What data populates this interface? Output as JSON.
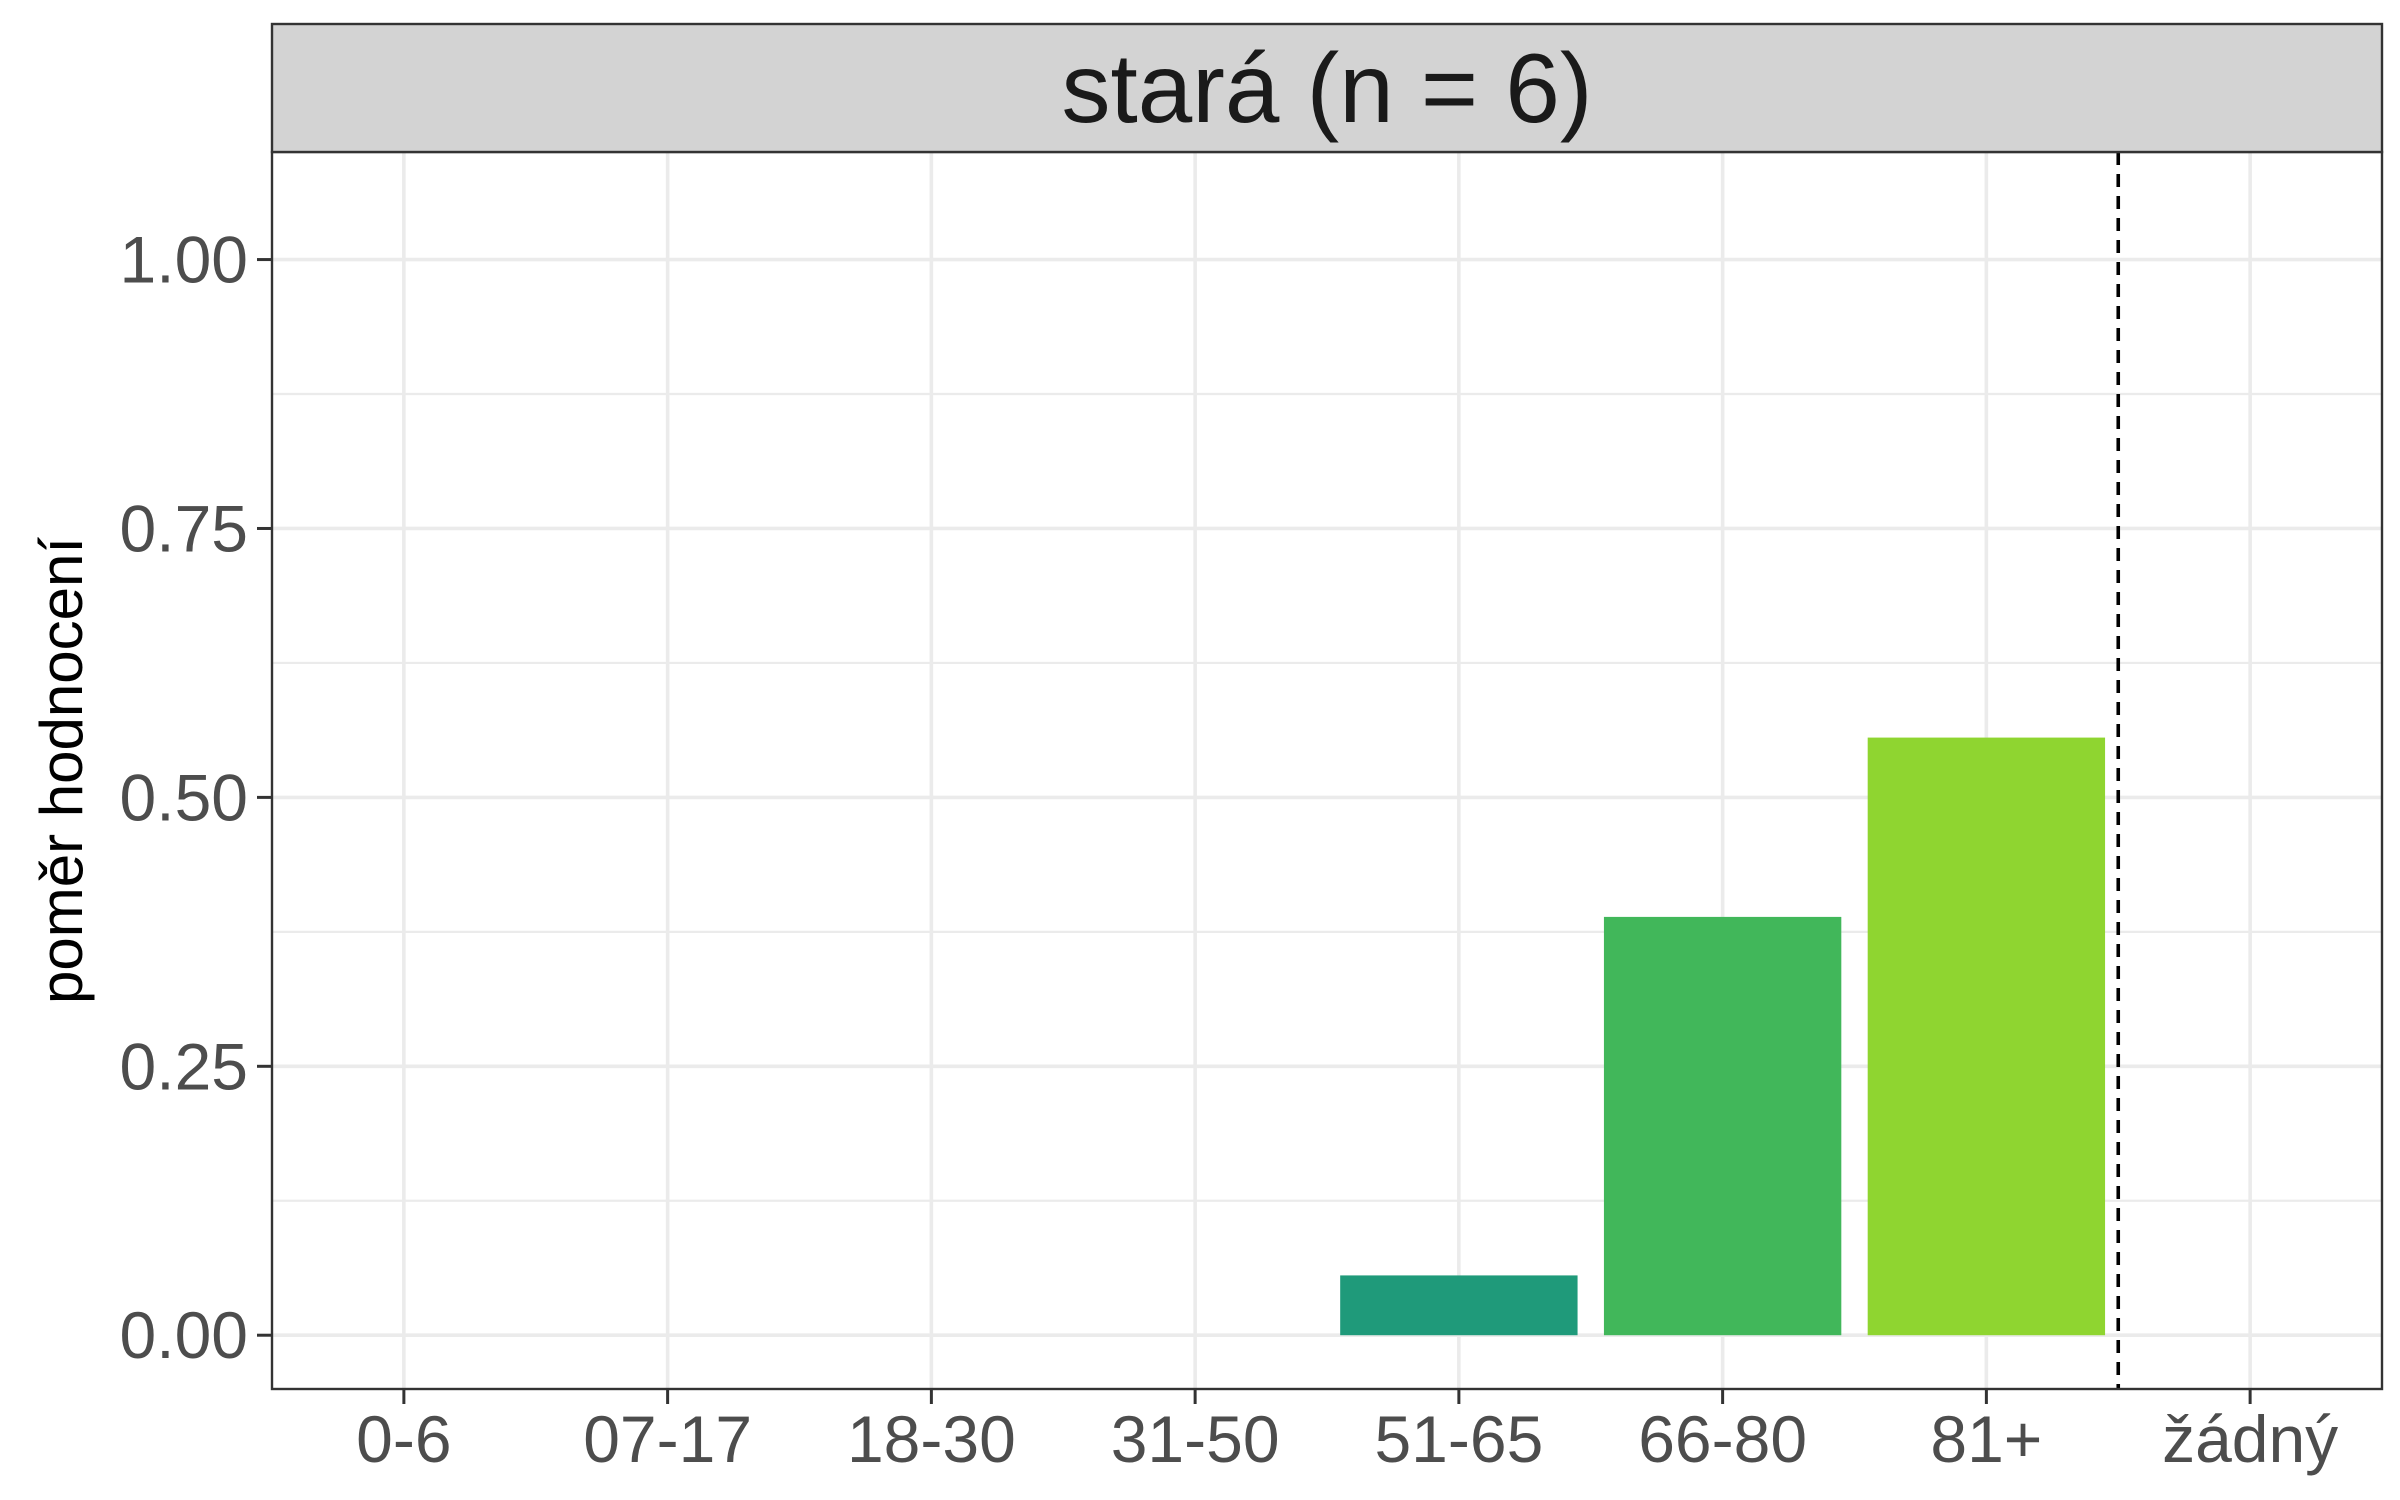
{
  "chart_data": {
    "type": "bar",
    "facet_title": "stará (n = 6)",
    "ylabel": "poměr hodnocení",
    "xlabel": "",
    "categories": [
      "0-6",
      "07-17",
      "18-30",
      "31-50",
      "51-65",
      "66-80",
      "81+",
      "žádný"
    ],
    "values": [
      0,
      0,
      0,
      0,
      0.0556,
      0.3889,
      0.5556,
      0
    ],
    "ylim": [
      -0.05,
      1.1
    ],
    "yticks": [
      0,
      0.25,
      0.5,
      0.75,
      1.0
    ],
    "ytick_labels": [
      "0.00",
      "0.25",
      "0.50",
      "0.75",
      "1.00"
    ],
    "colors": [
      "#440154",
      "#482878",
      "#3e4989",
      "#31688e",
      "#1f9a7a",
      "#41b75a",
      "#8fd530",
      "#fde725"
    ],
    "reference_line": {
      "between": [
        "81+",
        "žádný"
      ],
      "style": "dashed"
    },
    "grid": true,
    "theme": {
      "strip_fill": "#d3d3d3",
      "grid_color": "#ebebeb",
      "border_color": "#333333"
    }
  }
}
